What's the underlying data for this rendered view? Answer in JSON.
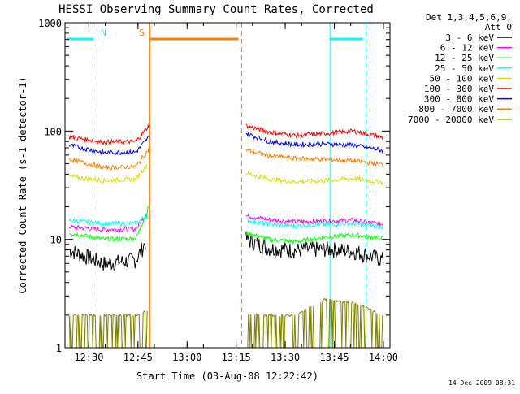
{
  "chart_data": {
    "type": "line",
    "title": "HESSI Observing Summary Count Rates, Corrected",
    "xlabel": "Start Time (03-Aug-08 12:22:42)",
    "ylabel": "Corrected Count Rate (s-1 detector-1)",
    "y_scale": "log",
    "ylim": [
      1,
      1000
    ],
    "xlim": [
      "12:22:42",
      "14:02:00"
    ],
    "x_ticks": [
      "12:30",
      "12:45",
      "13:00",
      "13:15",
      "13:30",
      "13:45",
      "14:00"
    ],
    "y_ticks": [
      "1",
      "10",
      "100",
      "1000"
    ],
    "legend_header": [
      "Det 1,3,4,5,6,9,",
      "Att 0"
    ],
    "legend_position": "outside-right",
    "footer": "14-Dec-2009 08:31",
    "data_gap": [
      "12:48:40",
      "13:16:40"
    ],
    "series": [
      {
        "name": "3 - 6 keV",
        "color": "#000000",
        "before": [
          [
            12.4,
            8.0
          ],
          [
            12.58,
            6.0
          ],
          [
            12.74,
            6.5
          ],
          [
            12.79,
            9.5
          ]
        ],
        "after": [
          [
            13.3,
            10.0
          ],
          [
            13.42,
            8.3
          ],
          [
            13.55,
            8.0
          ],
          [
            13.7,
            8.2
          ],
          [
            13.85,
            7.8
          ],
          [
            14.0,
            6.5
          ]
        ]
      },
      {
        "name": "6 - 12 keV",
        "color": "#ff00ff",
        "before": [
          [
            12.4,
            13.0
          ],
          [
            12.58,
            12.3
          ],
          [
            12.74,
            12.5
          ],
          [
            12.8,
            18.0
          ]
        ],
        "after": [
          [
            13.3,
            16.5
          ],
          [
            13.42,
            15.2
          ],
          [
            13.55,
            14.5
          ],
          [
            13.7,
            14.8
          ],
          [
            13.85,
            15.0
          ],
          [
            14.0,
            13.8
          ]
        ]
      },
      {
        "name": "12 - 25 keV",
        "color": "#00ff00",
        "before": [
          [
            12.4,
            11.5
          ],
          [
            12.58,
            10.0
          ],
          [
            12.74,
            10.2
          ],
          [
            12.81,
            21.0
          ]
        ],
        "after": [
          [
            13.3,
            11.5
          ],
          [
            13.42,
            10.0
          ],
          [
            13.55,
            9.5
          ],
          [
            13.7,
            10.5
          ],
          [
            13.85,
            11.0
          ],
          [
            14.0,
            10.2
          ]
        ]
      },
      {
        "name": "25 - 50 keV",
        "color": "#00ffff",
        "before": [
          [
            12.4,
            15.0
          ],
          [
            12.58,
            14.0
          ],
          [
            12.74,
            14.0
          ],
          [
            12.8,
            17.0
          ]
        ],
        "after": [
          [
            13.3,
            15.0
          ],
          [
            13.42,
            13.8
          ],
          [
            13.55,
            13.3
          ],
          [
            13.7,
            13.8
          ],
          [
            13.85,
            14.0
          ],
          [
            14.0,
            13.0
          ]
        ]
      },
      {
        "name": "50 - 100 keV",
        "color": "#dddd00",
        "before": [
          [
            12.4,
            38.0
          ],
          [
            12.58,
            35.0
          ],
          [
            12.74,
            36.0
          ],
          [
            12.8,
            50.0
          ]
        ],
        "after": [
          [
            13.3,
            41.0
          ],
          [
            13.42,
            36.0
          ],
          [
            13.55,
            34.0
          ],
          [
            13.7,
            35.0
          ],
          [
            13.85,
            36.5
          ],
          [
            14.0,
            33.5
          ]
        ]
      },
      {
        "name": "100 - 300 keV",
        "color": "#ff0000",
        "before": [
          [
            12.4,
            88.0
          ],
          [
            12.58,
            79.0
          ],
          [
            12.74,
            80.0
          ],
          [
            12.81,
            115.0
          ]
        ],
        "after": [
          [
            13.3,
            112.0
          ],
          [
            13.42,
            98.0
          ],
          [
            13.55,
            91.0
          ],
          [
            13.7,
            95.0
          ],
          [
            13.85,
            100.0
          ],
          [
            14.0,
            87.0
          ]
        ]
      },
      {
        "name": "300 - 800 keV",
        "color": "#0000ff",
        "before": [
          [
            12.4,
            74.0
          ],
          [
            12.58,
            63.0
          ],
          [
            12.74,
            64.0
          ],
          [
            12.81,
            90.0
          ]
        ],
        "after": [
          [
            13.3,
            95.0
          ],
          [
            13.42,
            80.0
          ],
          [
            13.55,
            75.0
          ],
          [
            13.7,
            76.0
          ],
          [
            13.85,
            74.0
          ],
          [
            14.0,
            66.0
          ]
        ]
      },
      {
        "name": "800 - 7000 keV",
        "color": "#ff8000",
        "before": [
          [
            12.4,
            55.0
          ],
          [
            12.58,
            46.0
          ],
          [
            12.74,
            47.0
          ],
          [
            12.81,
            70.0
          ]
        ],
        "after": [
          [
            13.3,
            67.0
          ],
          [
            13.42,
            59.0
          ],
          [
            13.55,
            56.0
          ],
          [
            13.7,
            55.0
          ],
          [
            13.85,
            53.0
          ],
          [
            14.0,
            49.0
          ]
        ]
      },
      {
        "name": "7000 - 20000 keV",
        "color": "#808000",
        "before": [
          [
            12.4,
            2.0
          ],
          [
            12.58,
            2.0
          ],
          [
            12.74,
            2.0
          ],
          [
            12.8,
            2.2
          ]
        ],
        "after": [
          [
            13.3,
            2.0
          ],
          [
            13.42,
            2.0
          ],
          [
            13.55,
            2.0
          ],
          [
            13.7,
            2.8
          ],
          [
            13.85,
            2.6
          ],
          [
            14.0,
            2.0
          ]
        ]
      }
    ],
    "annotations": [
      {
        "label": "N",
        "color": "#00ffff",
        "start": "12:22:42",
        "end": "12:32:30",
        "end_line": "dashed"
      },
      {
        "label": "S",
        "color": "#ff8000",
        "start": "12:48:40",
        "end": "13:16:40",
        "end_line": "dashed"
      },
      {
        "label": "",
        "color": "#00ffff",
        "start": "13:43:40",
        "end": "13:54:40",
        "end_line": "dashed"
      }
    ]
  }
}
